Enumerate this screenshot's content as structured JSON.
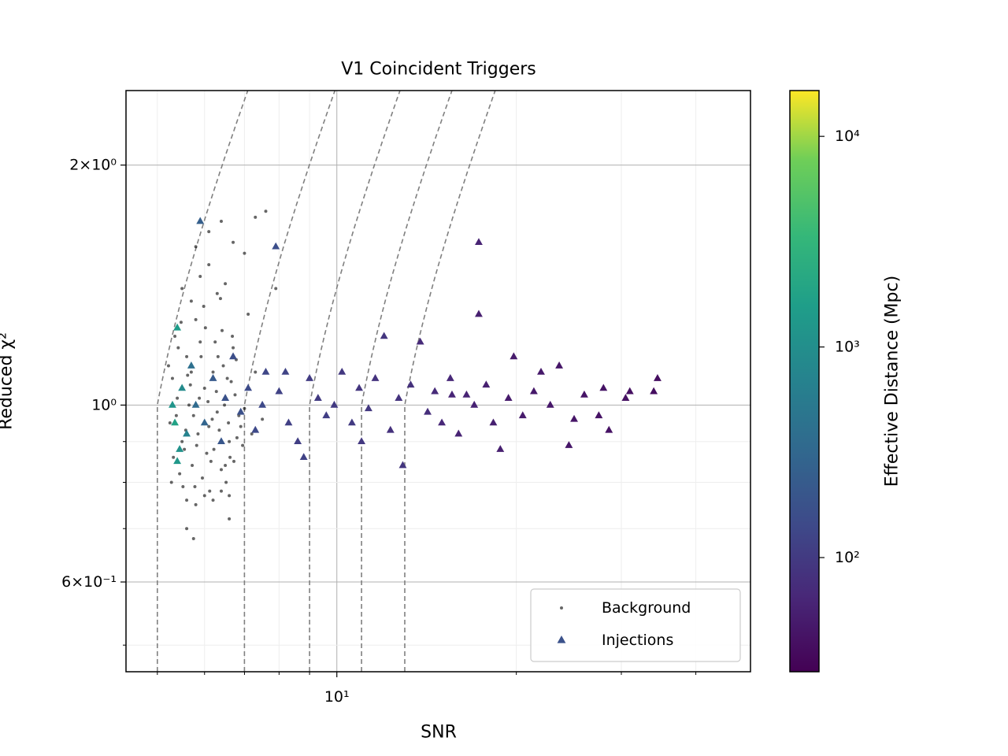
{
  "chart_data": {
    "type": "scatter",
    "title": "V1 Coincident Triggers",
    "x_label": "SNR",
    "y_label": "Reduced χ²",
    "xscale": "log",
    "yscale": "log",
    "xlim": [
      4.43,
      49.4
    ],
    "ylim": [
      0.463,
      2.48
    ],
    "xticks": [
      {
        "value": 10,
        "label": "10¹"
      }
    ],
    "xminor_ticks": [
      5,
      6,
      7,
      8,
      9,
      20,
      30,
      40
    ],
    "yticks": [
      {
        "value": 0.6,
        "label": "6×10⁻¹"
      },
      {
        "value": 1,
        "label": "10⁰"
      },
      {
        "value": 2,
        "label": "2×10⁰"
      }
    ],
    "yminor_ticks": [
      0.5,
      0.7,
      0.8,
      0.9
    ],
    "grid": true,
    "legend": "lower right",
    "contours": [
      5,
      7,
      9,
      11,
      13
    ],
    "contour_color": "#808080",
    "series": [
      {
        "name": "Background",
        "color": "#000000",
        "marker": "point",
        "x": [
          5.25,
          5.4,
          5.55,
          5.7,
          5.85,
          6.0,
          6.15,
          6.3,
          6.45,
          6.6,
          6.75,
          6.9,
          5.3,
          5.45,
          5.6,
          5.75,
          5.9,
          6.05,
          6.2,
          6.35,
          6.5,
          6.65,
          6.8,
          7.0,
          5.28,
          5.42,
          5.58,
          5.72,
          5.88,
          6.02,
          6.18,
          6.32,
          6.48,
          6.62,
          6.78,
          6.95,
          5.35,
          5.5,
          5.65,
          5.8,
          5.95,
          6.1,
          6.25,
          6.4,
          6.55,
          6.7,
          6.85,
          7.1,
          5.22,
          5.38,
          5.52,
          5.68,
          5.82,
          5.98,
          6.12,
          6.28,
          6.42,
          6.58,
          6.72,
          7.2,
          5.32,
          5.48,
          5.62,
          5.78,
          5.92,
          6.08,
          6.22,
          6.38,
          6.52,
          6.68,
          7.3,
          7.5,
          5.5,
          5.7,
          5.9,
          6.1,
          6.3,
          6.5,
          5.6,
          5.8,
          6.0,
          6.2,
          6.4,
          6.6,
          5.8,
          6.1,
          6.4,
          6.7,
          7.0,
          7.3,
          7.6,
          7.9,
          6.6,
          5.6,
          5.75,
          7.1
        ],
        "y": [
          0.95,
          1.02,
          0.88,
          1.1,
          0.92,
          1.05,
          0.85,
          0.98,
          1.12,
          0.9,
          1.03,
          0.94,
          1.08,
          0.82,
          1.15,
          0.97,
          1.2,
          0.87,
          1.1,
          0.93,
          0.84,
          1.07,
          0.91,
          0.99,
          0.8,
          1.18,
          0.93,
          0.84,
          1.02,
          1.25,
          0.96,
          1.15,
          1.0,
          0.86,
          1.14,
          0.89,
          1.22,
          0.9,
          1.0,
          1.28,
          0.81,
          0.94,
          1.2,
          0.83,
          1.08,
          1.18,
          0.97,
          1.05,
          1.12,
          0.97,
          0.79,
          1.06,
          0.89,
          1.33,
          0.78,
          1.04,
          1.24,
          0.95,
          0.85,
          0.92,
          0.86,
          1.27,
          1.09,
          0.79,
          1.15,
          1.01,
          0.88,
          1.36,
          0.8,
          1.22,
          1.1,
          0.96,
          1.4,
          1.35,
          1.45,
          1.5,
          1.38,
          1.42,
          0.76,
          0.75,
          0.77,
          0.76,
          0.78,
          0.77,
          1.58,
          1.65,
          1.7,
          1.6,
          1.55,
          1.72,
          1.75,
          1.4,
          0.72,
          0.7,
          0.68,
          1.3
        ]
      },
      {
        "name": "Injections",
        "color": "#3b528b",
        "marker": "triangle",
        "x": [
          5.4,
          5.3,
          5.35,
          5.5,
          5.6,
          5.45,
          5.7,
          5.9,
          5.8,
          6.0,
          6.2,
          6.4,
          6.5,
          6.7,
          6.9,
          7.1,
          7.3,
          7.6,
          7.9,
          7.5,
          8.0,
          8.3,
          8.6,
          8.8,
          9.0,
          9.3,
          9.6,
          9.9,
          10.2,
          10.6,
          10.9,
          11.3,
          11.6,
          12.0,
          12.3,
          12.7,
          12.9,
          13.3,
          13.8,
          14.2,
          14.6,
          15.0,
          15.5,
          16.0,
          16.5,
          17.0,
          17.3,
          17.3,
          17.8,
          18.3,
          18.8,
          19.4,
          19.8,
          20.5,
          21.4,
          22.0,
          22.8,
          23.6,
          24.5,
          25.0,
          26.0,
          27.5,
          28.0,
          28.6,
          30.5,
          31.0,
          34.5,
          34.0,
          15.6,
          11.0,
          8.2,
          5.4
        ],
        "y": [
          1.25,
          1.0,
          0.95,
          1.05,
          0.92,
          0.88,
          1.12,
          1.7,
          1.0,
          0.95,
          1.08,
          0.9,
          1.02,
          1.15,
          0.98,
          1.05,
          0.93,
          1.1,
          1.58,
          1.0,
          1.04,
          0.95,
          0.9,
          0.86,
          1.08,
          1.02,
          0.97,
          1.0,
          1.1,
          0.95,
          1.05,
          0.99,
          1.08,
          1.22,
          0.93,
          1.02,
          0.84,
          1.06,
          1.2,
          0.98,
          1.04,
          0.95,
          1.08,
          0.92,
          1.03,
          1.0,
          1.6,
          1.3,
          1.06,
          0.95,
          0.88,
          1.02,
          1.15,
          0.97,
          1.04,
          1.1,
          1.0,
          1.12,
          0.89,
          0.96,
          1.03,
          0.97,
          1.05,
          0.93,
          1.02,
          1.04,
          1.08,
          1.04,
          1.03,
          0.9,
          1.1,
          0.85
        ],
        "c": [
          1500,
          1200,
          1800,
          900,
          700,
          1100,
          400,
          250,
          350,
          300,
          220,
          200,
          180,
          160,
          170,
          150,
          140,
          130,
          160,
          140,
          120,
          115,
          110,
          120,
          105,
          100,
          110,
          100,
          95,
          100,
          90,
          95,
          85,
          90,
          80,
          85,
          90,
          80,
          70,
          75,
          70,
          65,
          65,
          60,
          60,
          58,
          60,
          55,
          55,
          55,
          55,
          50,
          50,
          50,
          48,
          48,
          46,
          45,
          45,
          44,
          43,
          42,
          42,
          41,
          40,
          40,
          38,
          38,
          62,
          95,
          125,
          1300
        ]
      }
    ],
    "colorbar": {
      "label": "Effective Distance (Mpc)",
      "scale": "log",
      "cmap": "viridis",
      "lim": [
        28.7,
        16500
      ],
      "ticks": [
        {
          "value": 100,
          "label": "10²"
        },
        {
          "value": 1000,
          "label": "10³"
        },
        {
          "value": 10000,
          "label": "10⁴"
        }
      ]
    }
  }
}
